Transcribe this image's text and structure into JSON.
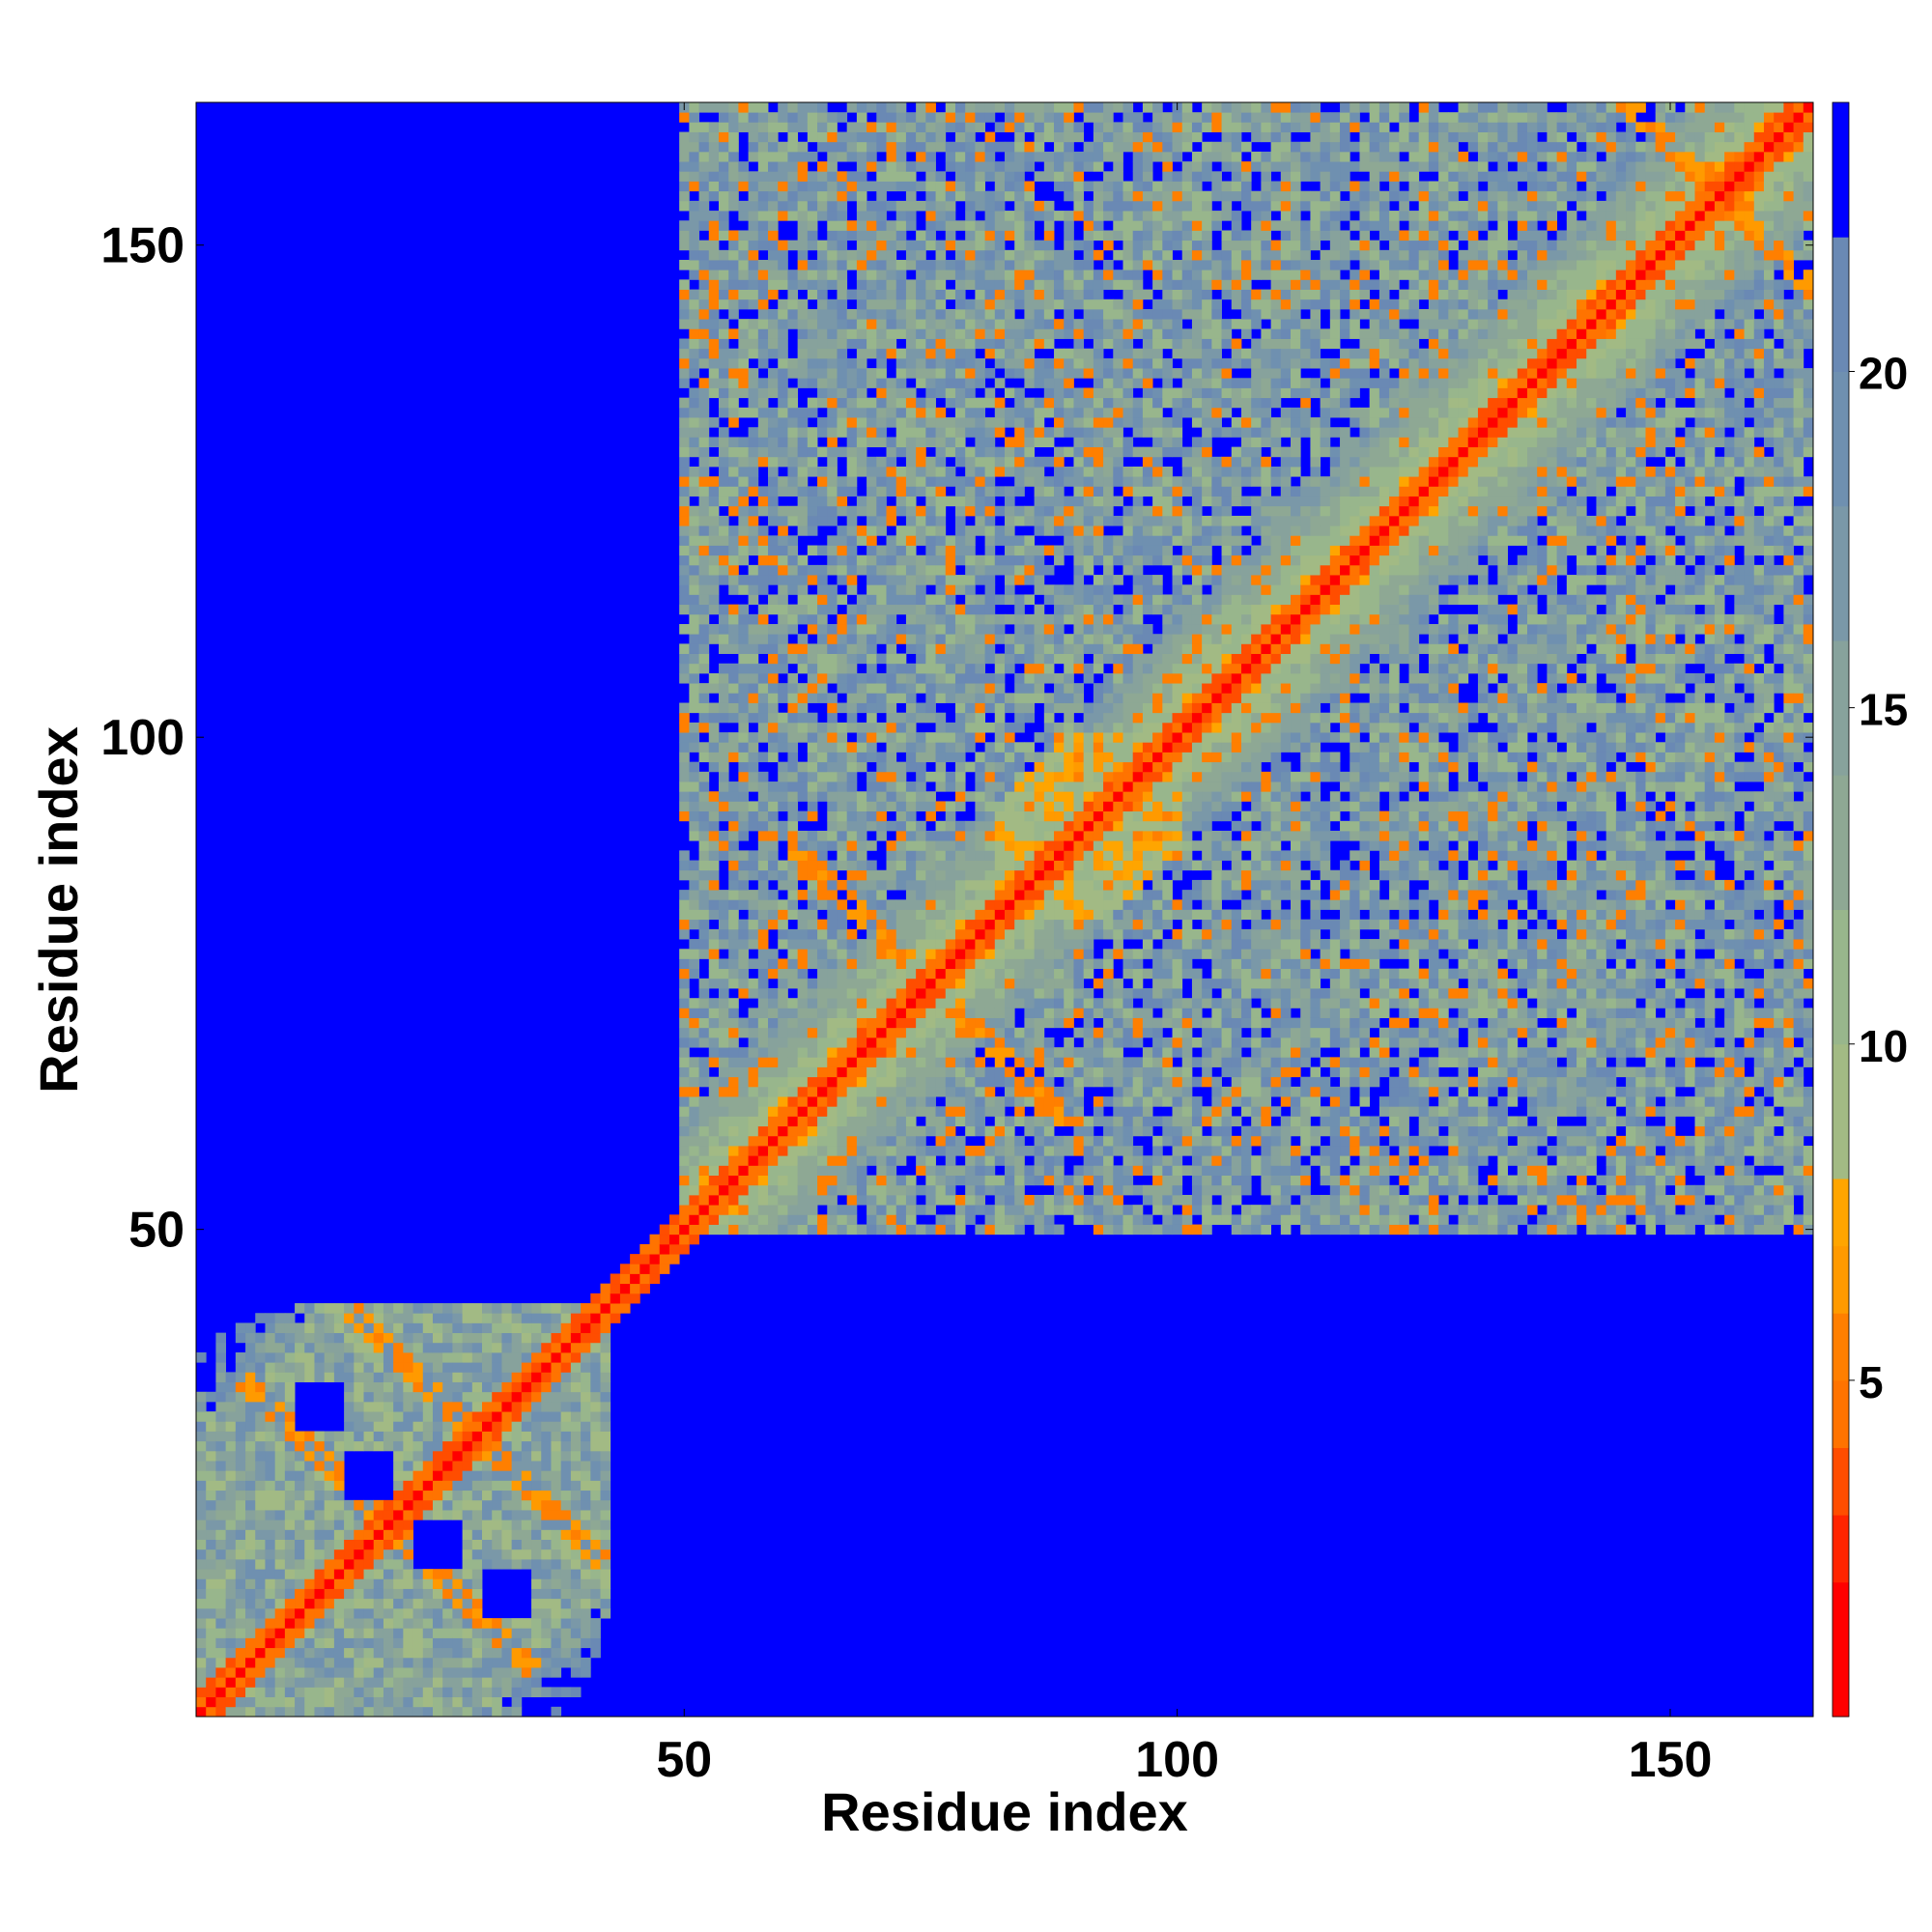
{
  "chart_data": {
    "type": "heatmap",
    "title": "",
    "xlabel": "Residue index",
    "ylabel": "Residue index",
    "x_range": [
      1,
      164
    ],
    "y_range": [
      1,
      164
    ],
    "x_ticks": [
      50,
      100,
      150
    ],
    "y_ticks": [
      50,
      100,
      150
    ],
    "colorbar": {
      "range": [
        0,
        24
      ],
      "ticks": [
        5,
        10,
        15,
        20
      ],
      "levels": [
        {
          "min": 0,
          "max": 1,
          "color": "#ff0000"
        },
        {
          "min": 1,
          "max": 2,
          "color": "#ff0000"
        },
        {
          "min": 2,
          "max": 3,
          "color": "#ff2400"
        },
        {
          "min": 3,
          "max": 4,
          "color": "#ff4d00"
        },
        {
          "min": 4,
          "max": 5,
          "color": "#ff7300"
        },
        {
          "min": 5,
          "max": 6,
          "color": "#ff7f00"
        },
        {
          "min": 6,
          "max": 7,
          "color": "#ff9a00"
        },
        {
          "min": 7,
          "max": 8,
          "color": "#ffa500"
        },
        {
          "min": 8,
          "max": 10,
          "color": "#a2ba84"
        },
        {
          "min": 10,
          "max": 12,
          "color": "#98b68c"
        },
        {
          "min": 12,
          "max": 14,
          "color": "#8ea894"
        },
        {
          "min": 14,
          "max": 16,
          "color": "#87a29c"
        },
        {
          "min": 16,
          "max": 18,
          "color": "#7a98a8"
        },
        {
          "min": 18,
          "max": 20,
          "color": "#6f90b0"
        },
        {
          "min": 20,
          "max": 22,
          "color": "#6a89b4"
        },
        {
          "min": 22,
          "max": 24,
          "color": "#0000ff"
        }
      ]
    },
    "background_color": "#0000ff",
    "structure": {
      "diagonal": "distance 0 on the main diagonal (residue i vs residue i), low values (red/orange) in a band along it",
      "domains": [
        {
          "residues": [
            1,
            42
          ],
          "note": "N-terminal domain block with orange contact arms"
        },
        {
          "residues": [
            50,
            164
          ],
          "note": "C-terminal domain block, contacts up to ~22"
        }
      ]
    }
  }
}
